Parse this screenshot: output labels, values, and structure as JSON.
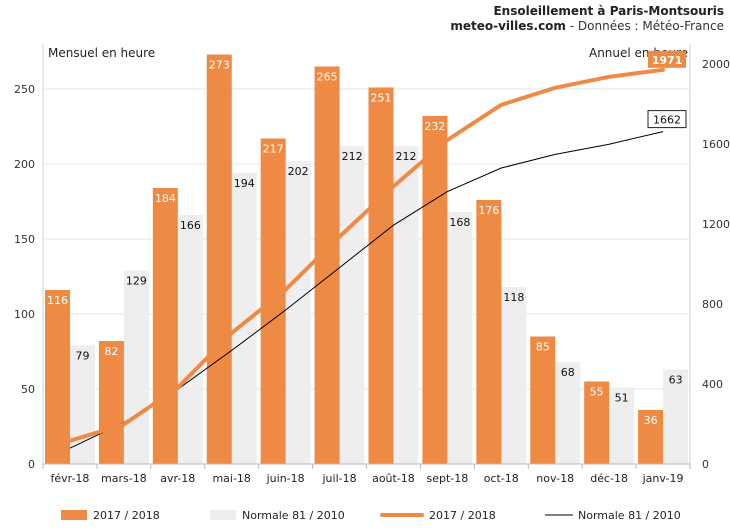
{
  "header": {
    "title": "Ensoleillement à Paris-Montsouris",
    "source_site": "meteo-villes.com",
    "source_rest": " - Données : Météo-France"
  },
  "colors": {
    "series_a": "#ef8a44",
    "series_b": "#eeeeee",
    "cumul_b": "#000000",
    "grid": "#e6e6e6"
  },
  "chart_data": {
    "type": "bar",
    "categories": [
      "févr-18",
      "mars-18",
      "avr-18",
      "mai-18",
      "juin-18",
      "juil-18",
      "août-18",
      "sept-18",
      "oct-18",
      "nov-18",
      "déc-18",
      "janv-19"
    ],
    "series": [
      {
        "name": "2017 / 2018",
        "values": [
          116,
          82,
          184,
          273,
          217,
          265,
          251,
          232,
          176,
          85,
          55,
          36
        ]
      },
      {
        "name": "Normale 81 / 2010",
        "values": [
          79,
          129,
          166,
          194,
          202,
          212,
          212,
          168,
          118,
          68,
          51,
          63
        ]
      }
    ],
    "line_series": [
      {
        "name": "2017 / 2018",
        "axis": "right",
        "values": [
          116,
          198,
          382,
          655,
          872,
          1137,
          1388,
          1620,
          1796,
          1881,
          1936,
          1971
        ]
      },
      {
        "name": "Normale 81 / 2010",
        "axis": "right",
        "values": [
          79,
          208,
          374,
          568,
          770,
          982,
          1194,
          1362,
          1480,
          1548,
          1599,
          1662
        ]
      }
    ],
    "left_axis": {
      "label": "Mensuel en heure",
      "ylim": [
        0,
        280
      ],
      "ticks": [
        0,
        50,
        100,
        150,
        200,
        250
      ]
    },
    "right_axis": {
      "label": "Annuel en heure",
      "ylim": [
        0,
        2100
      ],
      "ticks": [
        0,
        400,
        800,
        1200,
        1600,
        2000
      ]
    },
    "end_labels": [
      "1971",
      "1662"
    ],
    "grid": true,
    "legend_position": "bottom"
  }
}
